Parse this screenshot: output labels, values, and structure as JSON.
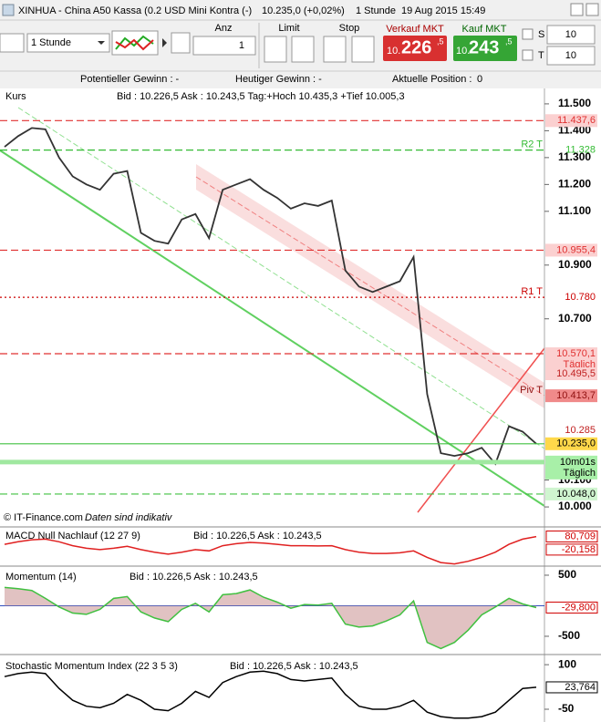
{
  "header": {
    "title": "XINHUA - China A50 Kassa (0.2 USD Mini Kontra (-)",
    "price": "10.235,0 (+0,02%)",
    "interval": "1 Stunde",
    "datetime": "19 Aug 2015 15:49"
  },
  "toolbar": {
    "interval": "1 Stunde",
    "anz_label": "Anz",
    "anz": "1",
    "limit_label": "Limit",
    "stop_label": "Stop",
    "sell_label": "Verkauf MKT",
    "sell_small": "10.",
    "sell_big": "226",
    "sell_sup": ",5",
    "buy_label": "Kauf MKT",
    "buy_small": "10.",
    "buy_big": "243",
    "buy_sup": ",5",
    "s_label": "S",
    "s_value": "10",
    "t_label": "T",
    "t_value": "10"
  },
  "status": {
    "potential": "Potentieller Gewinn : -",
    "today": "Heutiger Gewinn : -",
    "position": "Aktuelle Position :",
    "position_value": "0"
  },
  "main": {
    "name": "Kurs",
    "info": "Bid : 10.226,5 Ask : 10.243,5 Tag:+Hoch 10.435,3 +Tief 10.005,3",
    "footer": "© IT-Finance.com",
    "footer_note": "Daten sind indikativ",
    "ylim": [
      9929,
      11554
    ],
    "yticks": [
      {
        "value": 11500,
        "label": "11.500"
      },
      {
        "value": 11400,
        "label": "11.400"
      },
      {
        "value": 11300,
        "label": "11.300"
      },
      {
        "value": 11200,
        "label": "11.200"
      },
      {
        "value": 11100,
        "label": "11.100"
      },
      {
        "value": 10900,
        "label": "10.900"
      },
      {
        "value": 10700,
        "label": "10.700"
      },
      {
        "value": 10100,
        "label": "10.100"
      },
      {
        "value": 10000,
        "label": "10.000"
      }
    ],
    "values": [
      11340,
      11380,
      11410,
      11405,
      11300,
      11230,
      11200,
      11180,
      11240,
      11250,
      11020,
      10990,
      10980,
      11070,
      11090,
      11000,
      11180,
      11200,
      11220,
      11180,
      11150,
      11110,
      11130,
      11120,
      11140,
      10880,
      10820,
      10800,
      10820,
      10840,
      10930,
      10420,
      10200,
      10190,
      10200,
      10220,
      10160,
      10300,
      10280,
      10235
    ],
    "color": "#333333",
    "levels": [
      {
        "value": 11437.6,
        "label": "11.437,6",
        "color": "#e03030",
        "line": "dashed",
        "box": "#fbd0d0"
      },
      {
        "value": 11328,
        "label": "11.328",
        "tag": "R2 T",
        "color": "#33bb33",
        "line": "dashed"
      },
      {
        "value": 10955.4,
        "label": "10.955,4",
        "color": "#e03030",
        "line": "dashed",
        "box": "#fbd0d0"
      },
      {
        "value": 10780,
        "label": "10.780",
        "tag": "R1 T",
        "color": "#cc0000",
        "line": "dotted"
      },
      {
        "value": 10570.1,
        "label": "10.570,1",
        "sub": "Täglich",
        "color": "#e03030",
        "line": "dashed",
        "box": "#fbd0d0"
      },
      {
        "value": 10495.5,
        "label": "10.495,5",
        "color": "#c02020",
        "box": "#fbd0d0"
      },
      {
        "value": 10413.7,
        "label": "10.413,7",
        "tag": "Piv T",
        "color": "#901010",
        "box": "#f08a8a"
      },
      {
        "value": 10285,
        "label": "10.285",
        "color": "#c02020"
      },
      {
        "value": 10235,
        "label": "10.235,0",
        "color": "#000000",
        "line": "solid",
        "box": "#ffd84a"
      },
      {
        "value": 10167,
        "label": "10m01s",
        "sub": "Täglich",
        "color": "#000000",
        "line": "thick",
        "box": "#a8f0a8"
      },
      {
        "value": 10048,
        "label": "10.048,0",
        "color": "#000000",
        "line": "dashed",
        "box": "#d0f5d0"
      }
    ]
  },
  "macd": {
    "name": "MACD Null Nachlauf (12 27 9)",
    "info": "Bid : 10.226,5 Ask : 10.243,5",
    "ylim": [
      -140,
      140
    ],
    "color": "#e02020",
    "values": [
      20,
      40,
      55,
      60,
      40,
      10,
      -10,
      -20,
      -10,
      5,
      -20,
      -40,
      -55,
      -40,
      -20,
      -30,
      10,
      25,
      35,
      30,
      20,
      10,
      10,
      8,
      10,
      -20,
      -40,
      -50,
      -50,
      -45,
      -30,
      -80,
      -120,
      -130,
      -110,
      -80,
      -40,
      20,
      60,
      80
    ],
    "labels": [
      {
        "value": 80.709,
        "label": "80,709",
        "color": "#d00000"
      },
      {
        "value": -20.158,
        "label": "-20,158",
        "color": "#d00000"
      }
    ]
  },
  "momentum": {
    "name": "Momentum (14)",
    "info": "Bid : 10.226,5 Ask : 10.243,5",
    "ylim": [
      -784,
      619
    ],
    "yticks": [
      500,
      -500
    ],
    "color": "#40c040",
    "values": [
      300,
      280,
      250,
      120,
      -20,
      -120,
      -140,
      -60,
      120,
      150,
      -100,
      -200,
      -260,
      -60,
      40,
      -100,
      180,
      200,
      260,
      140,
      60,
      -40,
      20,
      10,
      40,
      -300,
      -350,
      -330,
      -250,
      -150,
      80,
      -600,
      -700,
      -600,
      -400,
      -150,
      -20,
      120,
      30,
      -30
    ],
    "labels": [
      {
        "value": -29.8,
        "label": "-29,800",
        "color": "#d00000"
      }
    ]
  },
  "stochastic": {
    "name": "Stochastic Momentum Index (22 3 5 3)",
    "info": "Bid : 10.226,5 Ask : 10.243,5",
    "ylim": [
      -93,
      128
    ],
    "yticks": [
      100,
      -50
    ],
    "color": "#000000",
    "values": [
      60,
      70,
      75,
      70,
      20,
      -20,
      -40,
      -45,
      -30,
      0,
      -20,
      -50,
      -55,
      -30,
      10,
      -10,
      40,
      60,
      75,
      78,
      70,
      50,
      45,
      50,
      55,
      0,
      -40,
      -50,
      -50,
      -40,
      -20,
      -60,
      -75,
      -80,
      -80,
      -75,
      -60,
      -20,
      20,
      24
    ],
    "labels": [
      {
        "value": 23.764,
        "label": "23,764",
        "color": "#000000"
      }
    ]
  }
}
